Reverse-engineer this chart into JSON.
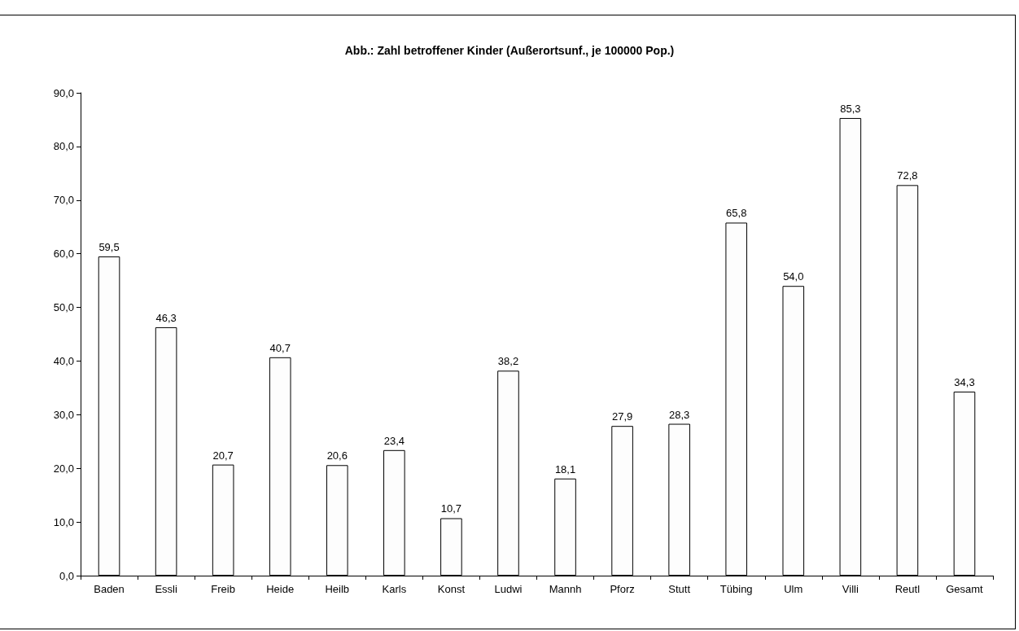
{
  "chart_data": {
    "type": "bar",
    "title": "Abb.: Zahl betroffener Kinder (Außerortsunf., je 100000 Pop.)",
    "categories": [
      "Baden",
      "Essli",
      "Freib",
      "Heide",
      "Heilb",
      "Karls",
      "Konst",
      "Ludwi",
      "Mannh",
      "Pforz",
      "Stutt",
      "Tübing",
      "Ulm",
      "Villi",
      "Reutl",
      "Gesamt"
    ],
    "values": [
      59.5,
      46.3,
      20.7,
      40.7,
      20.6,
      23.4,
      10.7,
      38.2,
      18.1,
      27.9,
      28.3,
      65.8,
      54.0,
      85.3,
      72.8,
      34.3
    ],
    "value_labels": [
      "59,5",
      "46,3",
      "20,7",
      "40,7",
      "20,6",
      "23,4",
      "10,7",
      "38,2",
      "18,1",
      "27,9",
      "28,3",
      "65,8",
      "54,0",
      "85,3",
      "72,8",
      "34,3"
    ],
    "color": "#fdfdfd",
    "ylim": [
      0,
      90
    ],
    "yticks": [
      {
        "value": 0,
        "label": "0,0"
      },
      {
        "value": 10,
        "label": "10,0"
      },
      {
        "value": 20,
        "label": "20,0"
      },
      {
        "value": 30,
        "label": "30,0"
      },
      {
        "value": 40,
        "label": "40,0"
      },
      {
        "value": 50,
        "label": "50,0"
      },
      {
        "value": 60,
        "label": "60,0"
      },
      {
        "value": 70,
        "label": "70,0"
      },
      {
        "value": 80,
        "label": "80,0"
      },
      {
        "value": 90,
        "label": "90,0"
      }
    ],
    "grid": false
  }
}
